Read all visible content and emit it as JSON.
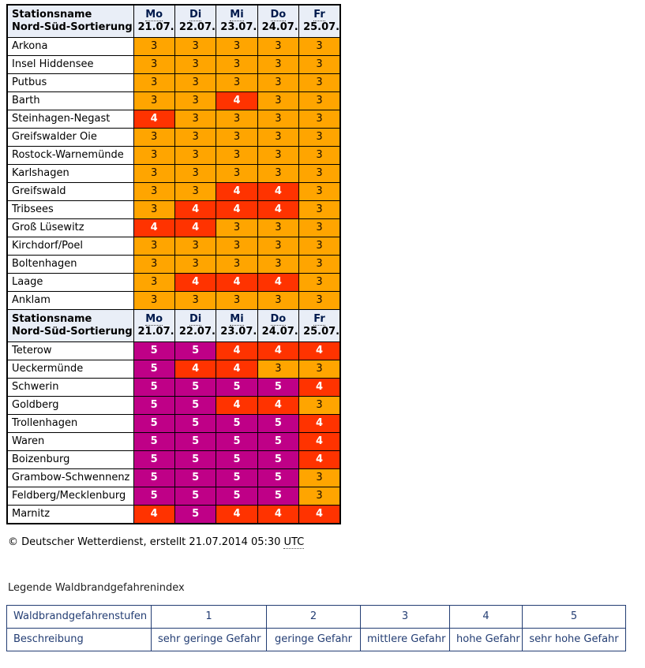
{
  "colors": {
    "header_bg": "#e9eef7",
    "level3_bg": "#ffa500",
    "level4_bg": "#ff3300",
    "level5_bg": "#bf0087",
    "legend_blue": "#233d73"
  },
  "table_header": {
    "station_line1": "Stationsname",
    "station_line2": "Nord-Süd-Sortierung",
    "days": [
      {
        "abbr": "Mo",
        "date": "21.07."
      },
      {
        "abbr": "Di",
        "date": "22.07."
      },
      {
        "abbr": "Mi",
        "date": "23.07."
      },
      {
        "abbr": "Do",
        "date": "24.07."
      },
      {
        "abbr": "Fr",
        "date": "25.07."
      }
    ]
  },
  "sections": [
    {
      "rows": [
        {
          "station": "Arkona",
          "values": [
            3,
            3,
            3,
            3,
            3
          ]
        },
        {
          "station": "Insel Hiddensee",
          "values": [
            3,
            3,
            3,
            3,
            3
          ]
        },
        {
          "station": "Putbus",
          "values": [
            3,
            3,
            3,
            3,
            3
          ]
        },
        {
          "station": "Barth",
          "values": [
            3,
            3,
            4,
            3,
            3
          ]
        },
        {
          "station": "Steinhagen-Negast",
          "values": [
            4,
            3,
            3,
            3,
            3
          ]
        },
        {
          "station": "Greifswalder Oie",
          "values": [
            3,
            3,
            3,
            3,
            3
          ]
        },
        {
          "station": "Rostock-Warnemünde",
          "values": [
            3,
            3,
            3,
            3,
            3
          ]
        },
        {
          "station": "Karlshagen",
          "values": [
            3,
            3,
            3,
            3,
            3
          ]
        },
        {
          "station": "Greifswald",
          "values": [
            3,
            3,
            4,
            4,
            3
          ]
        },
        {
          "station": "Tribsees",
          "values": [
            3,
            4,
            4,
            4,
            3
          ]
        },
        {
          "station": "Groß Lüsewitz",
          "values": [
            4,
            4,
            3,
            3,
            3
          ]
        },
        {
          "station": "Kirchdorf/Poel",
          "values": [
            3,
            3,
            3,
            3,
            3
          ]
        },
        {
          "station": "Boltenhagen",
          "values": [
            3,
            3,
            3,
            3,
            3
          ]
        },
        {
          "station": "Laage",
          "values": [
            3,
            4,
            4,
            4,
            3
          ]
        },
        {
          "station": "Anklam",
          "values": [
            3,
            3,
            3,
            3,
            3
          ]
        }
      ]
    },
    {
      "rows": [
        {
          "station": "Teterow",
          "values": [
            5,
            5,
            4,
            4,
            4
          ]
        },
        {
          "station": "Ueckermünde",
          "values": [
            5,
            4,
            4,
            3,
            3
          ]
        },
        {
          "station": "Schwerin",
          "values": [
            5,
            5,
            5,
            5,
            4
          ]
        },
        {
          "station": "Goldberg",
          "values": [
            5,
            5,
            4,
            4,
            3
          ]
        },
        {
          "station": "Trollenhagen",
          "values": [
            5,
            5,
            5,
            5,
            4
          ]
        },
        {
          "station": "Waren",
          "values": [
            5,
            5,
            5,
            5,
            4
          ]
        },
        {
          "station": "Boizenburg",
          "values": [
            5,
            5,
            5,
            5,
            4
          ]
        },
        {
          "station": "Grambow-Schwennenz",
          "values": [
            5,
            5,
            5,
            5,
            3
          ]
        },
        {
          "station": "Feldberg/Mecklenburg",
          "values": [
            5,
            5,
            5,
            5,
            3
          ]
        },
        {
          "station": "Marnitz",
          "values": [
            4,
            5,
            4,
            4,
            4
          ]
        }
      ]
    }
  ],
  "copyright": {
    "prefix": "© Deutscher Wetterdienst, erstellt 21.07.2014 05:30",
    "utc": "UTC"
  },
  "legend": {
    "title": "Legende Waldbrandgefahrenindex",
    "stufen_label": "Waldbrandgefahrenstufen",
    "levels": [
      "1",
      "2",
      "3",
      "4",
      "5"
    ],
    "beschreibung_label": "Beschreibung",
    "descriptions": [
      "sehr geringe Gefahr",
      "geringe Gefahr",
      "mittlere Gefahr",
      "hohe Gefahr",
      "sehr hohe Gefahr"
    ]
  }
}
